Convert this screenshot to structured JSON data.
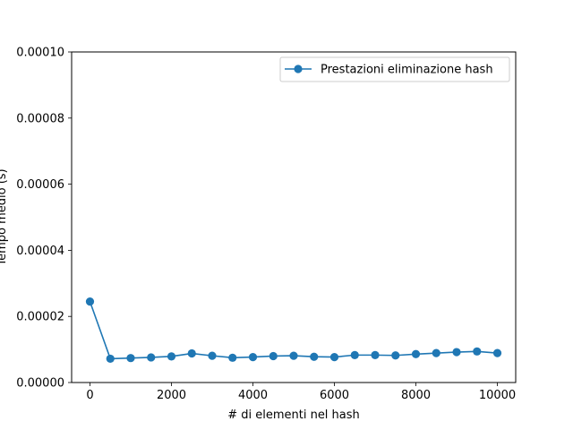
{
  "chart_data": {
    "type": "line",
    "xlabel": "# di elementi nel hash",
    "ylabel": "Tempo medio (s)",
    "xlim": [
      -450,
      10450
    ],
    "ylim": [
      0,
      0.0001
    ],
    "xticks": [
      0,
      2000,
      4000,
      6000,
      8000,
      10000
    ],
    "yticks": [
      0,
      2e-05,
      4e-05,
      6e-05,
      8e-05,
      0.0001
    ],
    "xtick_labels": [
      "0",
      "2000",
      "4000",
      "6000",
      "8000",
      "10000"
    ],
    "ytick_labels": [
      "0.00000",
      "0.00002",
      "0.00004",
      "0.00006",
      "0.00008",
      "0.00010"
    ],
    "grid": false,
    "legend_position": "top-right",
    "series": [
      {
        "name": "Prestazioni eliminazione hash",
        "color": "#1f77b4",
        "marker": "circle",
        "x": [
          0,
          500,
          1000,
          1500,
          2000,
          2500,
          3000,
          3500,
          4000,
          4500,
          5000,
          5500,
          6000,
          6500,
          7000,
          7500,
          8000,
          8500,
          9000,
          9500,
          10000
        ],
        "y": [
          2.45e-05,
          7.2e-06,
          7.4e-06,
          7.6e-06,
          7.9e-06,
          8.8e-06,
          8.1e-06,
          7.5e-06,
          7.7e-06,
          8e-06,
          8.1e-06,
          7.8e-06,
          7.7e-06,
          8.3e-06,
          8.3e-06,
          8.2e-06,
          8.6e-06,
          8.9e-06,
          9.2e-06,
          9.4e-06,
          8.9e-06
        ]
      }
    ]
  }
}
